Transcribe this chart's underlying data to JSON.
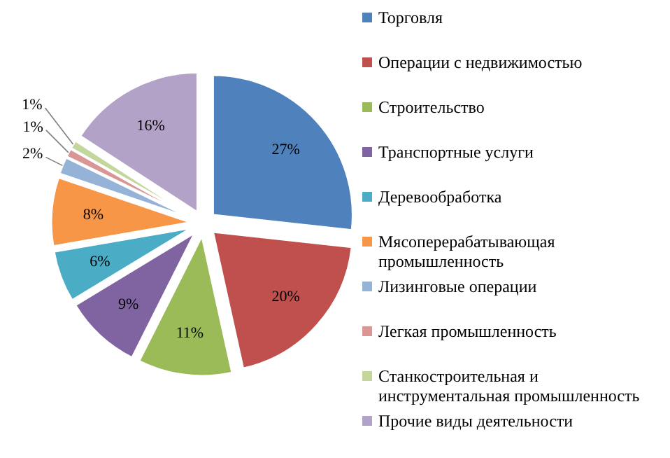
{
  "chart_data": {
    "type": "pie",
    "categories": [
      "Торговля",
      "Операции с недвижимостью",
      "Строительство",
      "Транспортные услуги",
      "Деревообработка",
      "Мясоперерабатывающая промышленность",
      "Лизинговые операции",
      "Легкая промышленность",
      "Станкостроительная и инструментальная промышленность",
      "Прочие виды деятельности"
    ],
    "values": [
      27,
      20,
      11,
      9,
      6,
      8,
      2,
      1,
      1,
      16
    ],
    "colors": [
      "#4f81bd",
      "#c0504d",
      "#9bbb59",
      "#8064a2",
      "#4bacc6",
      "#f79646",
      "#95b3d7",
      "#d99694",
      "#c3d69b",
      "#b3a2c7"
    ],
    "value_labels": [
      "27%",
      "20%",
      "11%",
      "9%",
      "6%",
      "8%",
      "2%",
      "1%",
      "1%",
      "16%"
    ],
    "legend": "right"
  }
}
